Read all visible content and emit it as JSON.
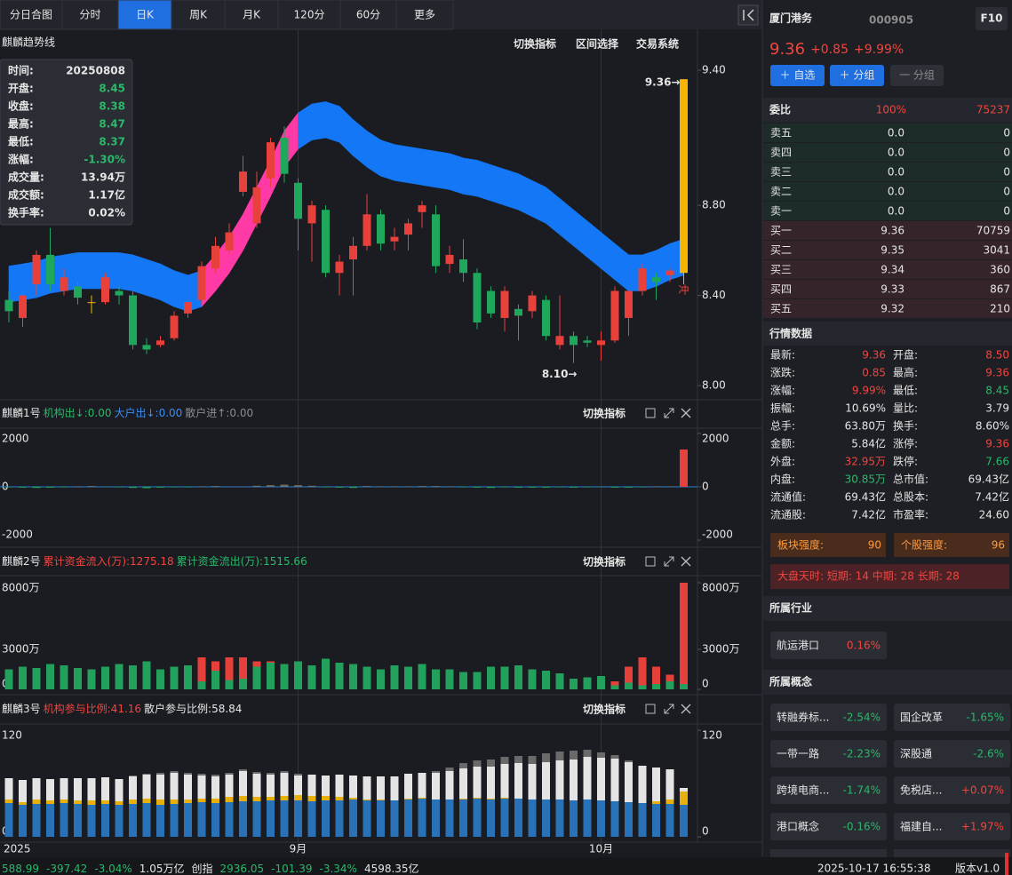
{
  "tabs": [
    "分日合图",
    "分时",
    "日K",
    "周K",
    "月K",
    "120分",
    "60分",
    "更多"
  ],
  "active_tab": 2,
  "stock": {
    "name": "厦门港务",
    "code": "000905",
    "f10": "F10",
    "price": "9.36",
    "change": "+0.85",
    "change_pct": "+9.99%"
  },
  "buttons": [
    "＋ 自选",
    "＋ 分组",
    "一 分组"
  ],
  "order_book": {
    "label": "委比",
    "ratio": "100%",
    "diff": "75237",
    "rows": [
      [
        "卖五",
        "0.0",
        "0"
      ],
      [
        "卖四",
        "0.0",
        "0"
      ],
      [
        "卖三",
        "0.0",
        "0"
      ],
      [
        "卖二",
        "0.0",
        "0"
      ],
      [
        "卖一",
        "0.0",
        "0"
      ],
      [
        "买一",
        "9.36",
        "70759"
      ],
      [
        "买二",
        "9.35",
        "3041"
      ],
      [
        "买三",
        "9.34",
        "360"
      ],
      [
        "买四",
        "9.33",
        "867"
      ],
      [
        "买五",
        "9.32",
        "210"
      ]
    ]
  },
  "quote": {
    "title": "行情数据",
    "items": [
      {
        "label": "最新:",
        "value": "9.36",
        "color": "red"
      },
      {
        "label": "开盘:",
        "value": "8.50",
        "color": "red"
      },
      {
        "label": "涨跌:",
        "value": "0.85",
        "color": "red"
      },
      {
        "label": "最高:",
        "value": "9.36",
        "color": "red"
      },
      {
        "label": "涨幅:",
        "value": "9.99%",
        "color": "red"
      },
      {
        "label": "最低:",
        "value": "8.45",
        "color": "green"
      },
      {
        "label": "振幅:",
        "value": "10.69%",
        "color": "white"
      },
      {
        "label": "量比:",
        "value": "3.79",
        "color": "white"
      },
      {
        "label": "总手:",
        "value": "63.80万",
        "color": "white"
      },
      {
        "label": "换手:",
        "value": "8.60%",
        "color": "white"
      },
      {
        "label": "金额:",
        "value": "5.84亿",
        "color": "white"
      },
      {
        "label": "涨停:",
        "value": "9.36",
        "color": "red"
      },
      {
        "label": "外盘:",
        "value": "32.95万",
        "color": "red"
      },
      {
        "label": "跌停:",
        "value": "7.66",
        "color": "green"
      },
      {
        "label": "内盘:",
        "value": "30.85万",
        "color": "green"
      },
      {
        "label": "总市值:",
        "value": "69.43亿",
        "color": "white"
      },
      {
        "label": "流通值:",
        "value": "69.43亿",
        "color": "white"
      },
      {
        "label": "总股本:",
        "value": "7.42亿",
        "color": "white"
      },
      {
        "label": "流通股:",
        "value": "7.42亿",
        "color": "white"
      },
      {
        "label": "市盈率:",
        "value": "24.60",
        "color": "white"
      }
    ]
  },
  "strength": {
    "sector": {
      "label": "板块强度:",
      "value": "90"
    },
    "stock": {
      "label": "个股强度:",
      "value": "96"
    },
    "market": "大盘天时:  短期: 14  中期: 28  长期: 28"
  },
  "industry": {
    "title": "所属行业",
    "items": [
      {
        "name": "航运港口",
        "change": "0.16%",
        "color": "red"
      }
    ]
  },
  "concepts": {
    "title": "所属概念",
    "items": [
      {
        "name": "转融券标...",
        "change": "-2.54%",
        "color": "green"
      },
      {
        "name": "国企改革",
        "change": "-1.65%",
        "color": "green"
      },
      {
        "name": "一带一路",
        "change": "-2.23%",
        "color": "green"
      },
      {
        "name": "深股通",
        "change": "-2.6%",
        "color": "green"
      },
      {
        "name": "跨境电商...",
        "change": "-1.74%",
        "color": "green"
      },
      {
        "name": "免税店...",
        "change": "+0.07%",
        "color": "red"
      },
      {
        "name": "港口概念",
        "change": "-0.16%",
        "color": "green"
      },
      {
        "name": "福建自...",
        "change": "+1.97%",
        "color": "red"
      }
    ]
  },
  "footer": {
    "items": [
      {
        "text": "588.99",
        "color": "green"
      },
      {
        "text": "-397.42",
        "color": "green"
      },
      {
        "text": "-3.04%",
        "color": "green"
      },
      {
        "text": "1.05万亿",
        "color": "white"
      },
      {
        "text": "创指",
        "color": "white"
      },
      {
        "text": "2936.05",
        "color": "green"
      },
      {
        "text": "-101.39",
        "color": "green"
      },
      {
        "text": "-3.34%",
        "color": "green"
      },
      {
        "text": "4598.35亿",
        "color": "white"
      }
    ],
    "time": "2025-10-17 16:55:38",
    "version": "版本v1.0"
  },
  "charts": {
    "main": {
      "type": "candlestick",
      "title": "麒麟趋势线",
      "tools": [
        "切换指标",
        "区间选择",
        "交易系统"
      ],
      "categories": [
        "2025",
        null,
        null,
        null,
        null,
        null,
        null,
        null,
        null,
        null,
        null,
        null,
        null,
        null,
        null,
        null,
        null,
        null,
        null,
        null,
        null,
        "9月",
        null,
        null,
        null,
        null,
        null,
        null,
        null,
        null,
        null,
        null,
        null,
        null,
        null,
        null,
        null,
        null,
        null,
        null,
        null,
        null,
        null,
        "10月",
        null,
        null,
        null,
        null,
        null,
        null
      ],
      "open": [
        8.38,
        8.3,
        8.45,
        8.58,
        8.42,
        8.44,
        8.37,
        8.37,
        8.42,
        8.4,
        8.18,
        8.18,
        8.21,
        8.32,
        8.38,
        8.52,
        8.6,
        8.86,
        8.72,
        8.92,
        9.1,
        8.9,
        8.72,
        8.78,
        8.5,
        8.56,
        8.62,
        8.76,
        8.64,
        8.67,
        8.77,
        8.76,
        8.54,
        8.56,
        8.5,
        8.42,
        8.3,
        8.34,
        8.33,
        8.38,
        8.18,
        8.22,
        8.2,
        8.18,
        8.2,
        8.3,
        8.42,
        8.48,
        8.49,
        8.5
      ],
      "close": [
        8.33,
        8.4,
        8.58,
        8.45,
        8.48,
        8.39,
        8.37,
        8.48,
        8.4,
        8.18,
        8.16,
        8.2,
        8.31,
        8.37,
        8.53,
        8.62,
        8.68,
        8.95,
        8.88,
        9.08,
        8.94,
        8.74,
        8.8,
        8.5,
        8.55,
        8.62,
        8.76,
        8.63,
        8.66,
        8.72,
        8.8,
        8.53,
        8.58,
        8.5,
        8.28,
        8.32,
        8.42,
        8.31,
        8.4,
        8.22,
        8.22,
        8.18,
        8.19,
        8.2,
        8.42,
        8.42,
        8.52,
        8.46,
        8.51,
        9.36
      ],
      "high": [
        8.42,
        8.42,
        8.6,
        8.7,
        8.52,
        8.46,
        8.4,
        8.5,
        8.44,
        8.42,
        8.21,
        8.22,
        8.33,
        8.38,
        8.55,
        8.66,
        8.72,
        9.02,
        8.95,
        9.1,
        9.15,
        8.92,
        8.82,
        8.8,
        8.58,
        8.66,
        8.85,
        8.78,
        8.7,
        8.74,
        8.82,
        8.8,
        8.62,
        8.65,
        8.52,
        8.44,
        8.44,
        8.36,
        8.42,
        8.4,
        8.4,
        8.24,
        8.22,
        8.24,
        8.44,
        8.44,
        8.54,
        8.5,
        8.52,
        9.36
      ],
      "low": [
        8.28,
        8.26,
        8.4,
        8.42,
        8.4,
        8.36,
        8.32,
        8.36,
        8.36,
        8.16,
        8.14,
        8.17,
        8.2,
        8.3,
        8.36,
        8.5,
        8.58,
        8.84,
        8.7,
        8.88,
        8.9,
        8.6,
        8.55,
        8.48,
        8.4,
        8.4,
        8.6,
        8.6,
        8.6,
        8.6,
        8.7,
        8.5,
        8.5,
        8.46,
        8.25,
        8.3,
        8.24,
        8.2,
        8.3,
        8.2,
        8.16,
        8.1,
        8.17,
        8.11,
        8.19,
        8.22,
        8.4,
        8.38,
        8.46,
        8.45
      ],
      "trend": [
        8.45,
        8.46,
        8.47,
        8.49,
        8.5,
        8.51,
        8.51,
        8.51,
        8.51,
        8.5,
        8.48,
        8.46,
        8.43,
        8.41,
        8.43,
        8.5,
        8.58,
        8.68,
        8.8,
        8.92,
        9.05,
        9.13,
        9.17,
        9.18,
        9.16,
        9.1,
        9.05,
        9.01,
        8.99,
        8.98,
        8.97,
        8.96,
        8.95,
        8.93,
        8.92,
        8.9,
        8.88,
        8.86,
        8.83,
        8.8,
        8.75,
        8.7,
        8.65,
        8.6,
        8.55,
        8.5,
        8.5,
        8.52,
        8.55,
        8.57
      ],
      "ylim": [
        8.0,
        9.4
      ],
      "yticks": [
        {
          "value": 9.4,
          "label": "9.40"
        },
        {
          "value": 8.8,
          "label": "8.80"
        },
        {
          "value": 8.4,
          "label": "8.40"
        },
        {
          "value": 8.0,
          "label": "8.00"
        }
      ],
      "annotations": {
        "high": "9.36→",
        "low": "8.10→",
        "signal": "冲"
      },
      "tooltip": [
        [
          "时间:",
          "20250808",
          "white"
        ],
        [
          "开盘:",
          "8.45",
          "green"
        ],
        [
          "收盘:",
          "8.38",
          "green"
        ],
        [
          "最高:",
          "8.47",
          "green"
        ],
        [
          "最低:",
          "8.37",
          "green"
        ],
        [
          "涨幅:",
          "-1.30%",
          "green"
        ],
        [
          "成交量:",
          "13.94万",
          "white"
        ],
        [
          "成交额:",
          "1.17亿",
          "white"
        ],
        [
          "换手率:",
          "0.02%",
          "white"
        ]
      ]
    },
    "sub1": {
      "type": "bar",
      "title": "麒麟1号",
      "tools": [
        "切换指标"
      ],
      "legend": [
        {
          "text": "机构出↓:0.00",
          "color": "green"
        },
        {
          "text": "大户出↓:0.00",
          "color": "blue"
        },
        {
          "text": "散户进↑:0.00",
          "color": "grey"
        }
      ],
      "values": [
        -20,
        -30,
        -40,
        -30,
        -20,
        20,
        30,
        -10,
        -20,
        -40,
        -50,
        -30,
        -20,
        -20,
        20,
        30,
        10,
        10,
        40,
        60,
        80,
        60,
        40,
        -20,
        -30,
        -40,
        30,
        20,
        20,
        20,
        30,
        30,
        20,
        -20,
        -30,
        -40,
        -20,
        -30,
        -30,
        -30,
        -20,
        -30,
        -20,
        -10,
        -30,
        -30,
        -20,
        20,
        20,
        1400
      ],
      "ylim": [
        -2000,
        2000
      ],
      "yticks": [
        2000,
        0,
        -2000
      ]
    },
    "sub2": {
      "type": "stacked-bar",
      "title": "麒麟2号",
      "tools": [
        "切换指标"
      ],
      "legend": [
        {
          "text": "累计资金流入(万):1275.18",
          "color": "red"
        },
        {
          "text": "累计资金流出(万):1515.66",
          "color": "green"
        }
      ],
      "series": [
        {
          "color": "#23a05c",
          "values": [
            1500,
            1700,
            1600,
            1900,
            1800,
            1600,
            1500,
            1700,
            1900,
            1800,
            2100,
            1500,
            1700,
            1800,
            600,
            1400,
            700,
            800,
            1700,
            2000,
            1900,
            2100,
            1800,
            2300,
            2000,
            1900,
            1700,
            1500,
            1800,
            1700,
            1900,
            1500,
            1500,
            1300,
            1300,
            1700,
            1700,
            1800,
            1500,
            1400,
            1200,
            800,
            900,
            1000,
            300,
            500,
            300,
            400,
            600,
            400
          ]
        },
        {
          "color": "#e5403a",
          "values": [
            0,
            0,
            0,
            0,
            0,
            0,
            0,
            0,
            0,
            0,
            0,
            0,
            0,
            0,
            1800,
            700,
            1700,
            1600,
            400,
            100,
            0,
            0,
            0,
            0,
            0,
            0,
            0,
            0,
            0,
            0,
            0,
            0,
            0,
            0,
            0,
            0,
            0,
            0,
            0,
            0,
            0,
            0,
            0,
            0,
            300,
            1200,
            2100,
            1300,
            500,
            7600
          ]
        }
      ],
      "ylim": [
        0,
        8000
      ],
      "yticks": [
        {
          "value": 8000,
          "label": "8000万"
        },
        {
          "value": 3000,
          "label": "3000万"
        },
        0
      ]
    },
    "sub3": {
      "type": "stacked-bar",
      "title": "麒麟3号",
      "tools": [
        "切换指标"
      ],
      "legend": [
        {
          "text": "机构参与比例:41.16",
          "color": "red"
        },
        {
          "text": "散户参与比例:58.84",
          "color": "white"
        }
      ],
      "series": [
        {
          "color": "#2a72b8",
          "values": [
            38,
            36,
            37,
            37,
            38,
            37,
            36,
            37,
            36,
            37,
            38,
            36,
            37,
            38,
            39,
            38,
            39,
            40,
            40,
            41,
            41,
            41,
            40,
            41,
            41,
            42,
            41,
            41,
            41,
            42,
            43,
            42,
            42,
            42,
            43,
            42,
            43,
            43,
            42,
            42,
            42,
            41,
            42,
            41,
            40,
            39,
            38,
            37,
            37,
            36
          ]
        },
        {
          "color": "#e8b00c",
          "values": [
            4,
            3,
            5,
            4,
            4,
            4,
            5,
            4,
            4,
            5,
            5,
            6,
            5,
            4,
            4,
            5,
            6,
            6,
            5,
            4,
            5,
            6,
            6,
            5,
            4,
            2,
            1,
            1,
            0,
            1,
            1,
            0,
            0,
            1,
            1,
            1,
            1,
            0,
            0,
            0,
            0,
            0,
            0,
            0,
            0,
            0,
            0,
            3,
            5,
            15
          ]
        },
        {
          "color": "#e4e4e4",
          "values": [
            24,
            25,
            24,
            24,
            24,
            25,
            25,
            26,
            25,
            26,
            27,
            28,
            30,
            28,
            26,
            25,
            25,
            28,
            26,
            25,
            26,
            22,
            24,
            23,
            25,
            25,
            26,
            26,
            27,
            28,
            28,
            30,
            32,
            34,
            35,
            36,
            38,
            40,
            40,
            42,
            44,
            46,
            48,
            48,
            48,
            45,
            42,
            38,
            34,
            4
          ]
        },
        {
          "color": "#6a6a6a",
          "values": [
            0,
            0,
            0,
            0,
            0,
            0,
            0,
            0,
            0,
            1,
            1,
            2,
            2,
            2,
            2,
            2,
            2,
            2,
            2,
            2,
            2,
            2,
            0,
            0,
            0,
            0,
            0,
            0,
            0,
            0,
            0,
            2,
            4,
            6,
            7,
            8,
            8,
            8,
            9,
            10,
            10,
            10,
            8,
            6,
            4,
            2,
            0,
            0,
            0,
            0
          ]
        }
      ],
      "ylim": [
        0,
        120
      ],
      "yticks": [
        120,
        0
      ]
    }
  }
}
